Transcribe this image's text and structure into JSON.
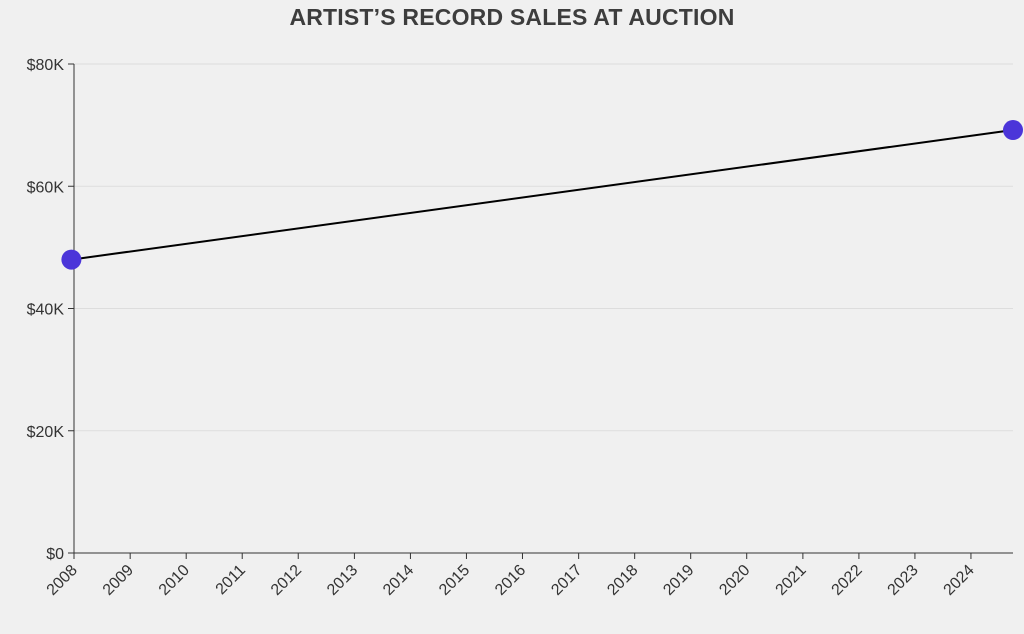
{
  "chart_data": {
    "type": "line",
    "title": "ARTIST’S RECORD SALES AT AUCTION",
    "xlabel": "",
    "ylabel": "",
    "x_ticks": [
      "2008",
      "2009",
      "2010",
      "2011",
      "2012",
      "2013",
      "2014",
      "2015",
      "2016",
      "2017",
      "2018",
      "2019",
      "2020",
      "2021",
      "2022",
      "2023",
      "2024"
    ],
    "y_ticks": [
      {
        "value": 0,
        "label": "$0"
      },
      {
        "value": 20000,
        "label": "$20K"
      },
      {
        "value": 40000,
        "label": "$40K"
      },
      {
        "value": 60000,
        "label": "$60K"
      },
      {
        "value": 80000,
        "label": "$80K"
      }
    ],
    "xlim": [
      "2008-01-01",
      "2024-10-01"
    ],
    "ylim": [
      0,
      80000
    ],
    "grid": "horizontal",
    "series": [
      {
        "x": [
          "2007-12-15",
          "2024-10-01"
        ],
        "y": [
          48000,
          69200
        ]
      }
    ],
    "colors": {
      "line": "#000000",
      "marker": "#4b35d9",
      "grid": "#dddddd",
      "axis": "#333333"
    }
  }
}
